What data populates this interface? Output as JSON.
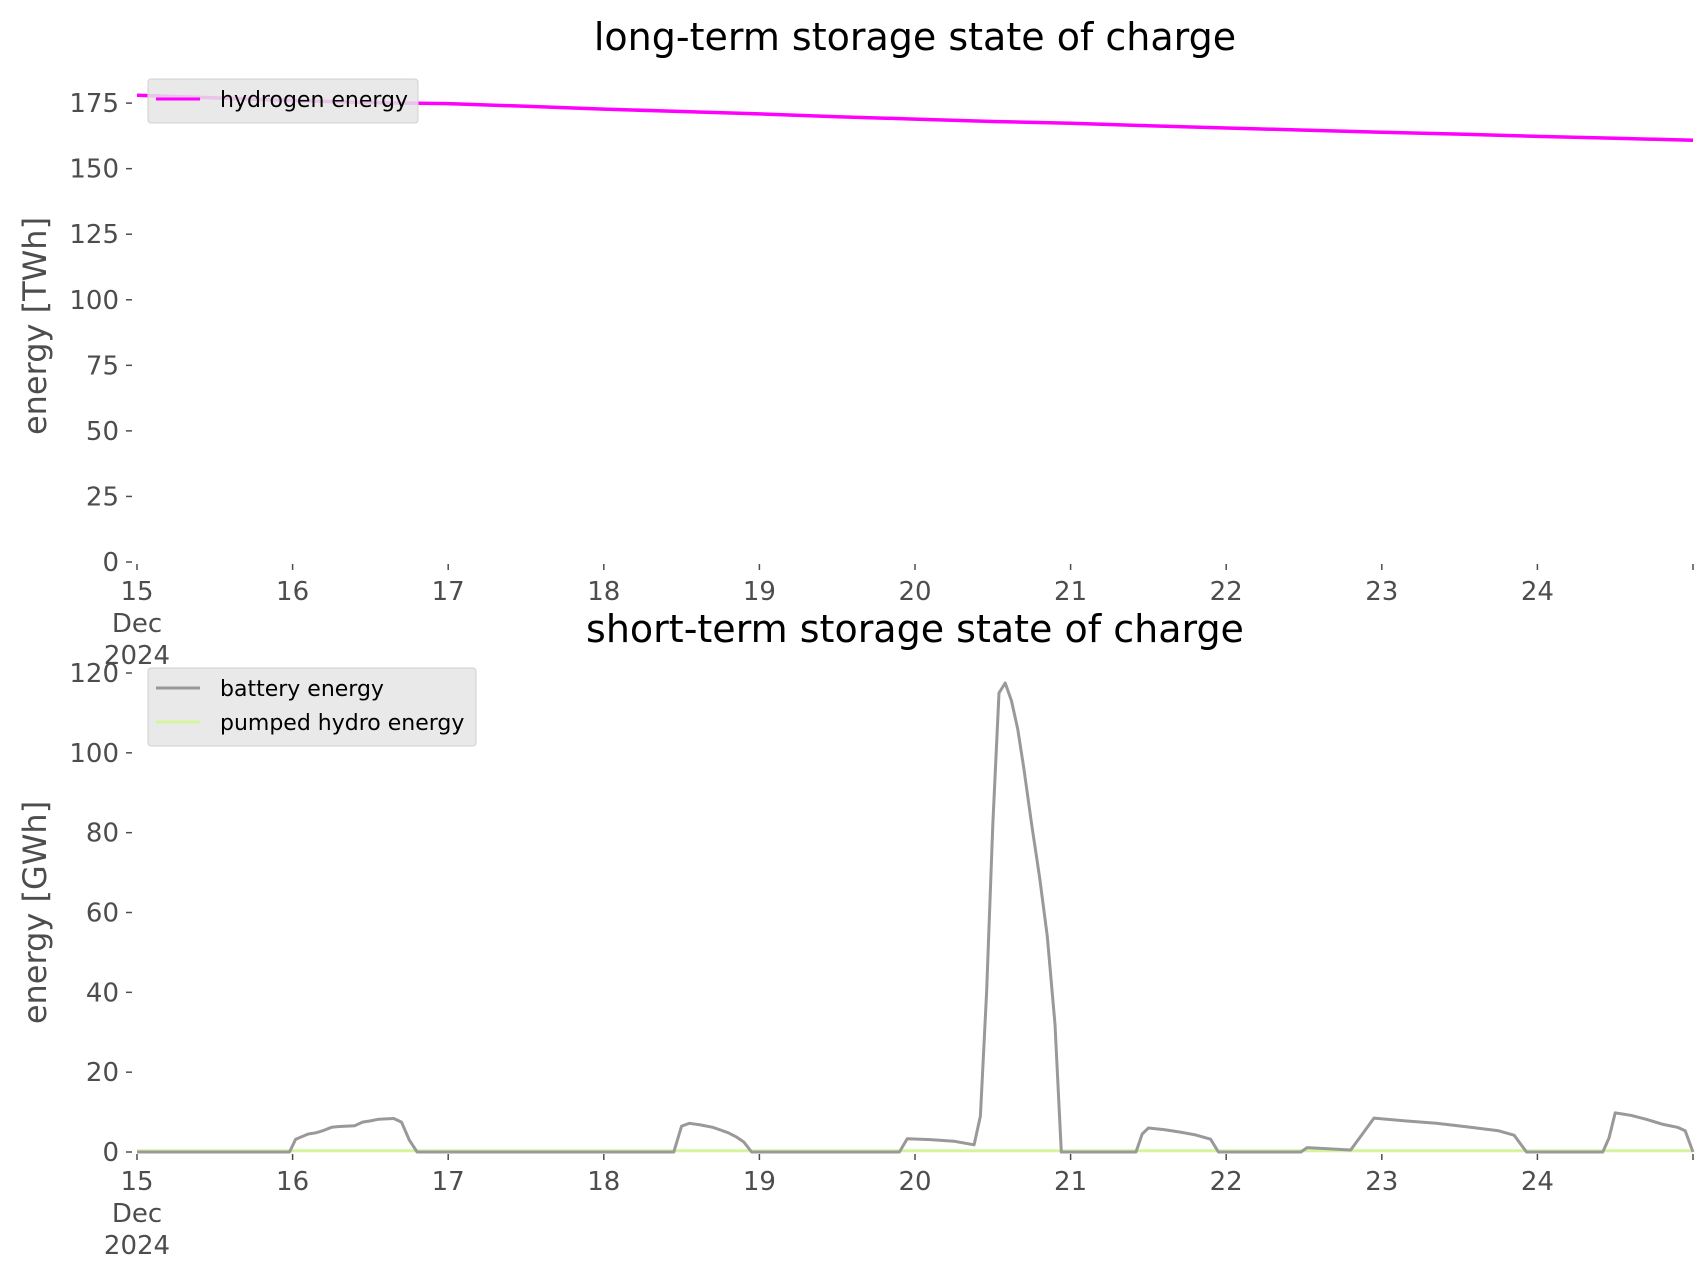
{
  "chart_data": [
    {
      "type": "line",
      "title": "long-term storage state of charge",
      "xlabel": "",
      "ylabel": "energy [TWh]",
      "xlim": [
        "2024-12-15 00:00",
        "2024-12-25 00:00"
      ],
      "ylim": [
        0,
        180
      ],
      "xticks": [
        {
          "value": 15,
          "label": [
            "15",
            "Dec",
            "2024"
          ]
        },
        {
          "value": 16,
          "label": [
            "16"
          ]
        },
        {
          "value": 17,
          "label": [
            "17"
          ]
        },
        {
          "value": 18,
          "label": [
            "18"
          ]
        },
        {
          "value": 19,
          "label": [
            "19"
          ]
        },
        {
          "value": 20,
          "label": [
            "20"
          ]
        },
        {
          "value": 21,
          "label": [
            "21"
          ]
        },
        {
          "value": 22,
          "label": [
            "22"
          ]
        },
        {
          "value": 23,
          "label": [
            "23"
          ]
        },
        {
          "value": 24,
          "label": [
            "24"
          ]
        },
        {
          "value": 25,
          "label": [
            ""
          ]
        }
      ],
      "yticks": [
        0,
        25,
        50,
        75,
        100,
        125,
        150,
        175
      ],
      "grid": false,
      "legend": "top-left",
      "series": [
        {
          "name": "hydrogen energy",
          "color": "#ff00ff",
          "x": [
            15,
            15.5,
            16,
            16.5,
            17,
            17.5,
            18,
            18.5,
            19,
            19.5,
            20,
            20.5,
            21,
            21.5,
            22,
            22.5,
            23,
            23.5,
            24,
            24.5,
            25
          ],
          "y": [
            178,
            177,
            176,
            175.2,
            174.8,
            173.8,
            172.7,
            171.8,
            170.9,
            169.8,
            168.9,
            168,
            167.3,
            166.4,
            165.5,
            164.7,
            163.9,
            163.2,
            162.3,
            161.6,
            160.8
          ]
        }
      ]
    },
    {
      "type": "line",
      "title": "short-term storage state of charge",
      "xlabel": "",
      "ylabel": "energy [GWh]",
      "xlim": [
        "2024-12-15 00:00",
        "2024-12-25 00:00"
      ],
      "ylim": [
        0,
        120
      ],
      "xticks": [
        {
          "value": 15,
          "label": [
            "15",
            "Dec",
            "2024"
          ]
        },
        {
          "value": 16,
          "label": [
            "16"
          ]
        },
        {
          "value": 17,
          "label": [
            "17"
          ]
        },
        {
          "value": 18,
          "label": [
            "18"
          ]
        },
        {
          "value": 19,
          "label": [
            "19"
          ]
        },
        {
          "value": 20,
          "label": [
            "20"
          ]
        },
        {
          "value": 21,
          "label": [
            "21"
          ]
        },
        {
          "value": 22,
          "label": [
            "22"
          ]
        },
        {
          "value": 23,
          "label": [
            "23"
          ]
        },
        {
          "value": 24,
          "label": [
            "24"
          ]
        },
        {
          "value": 25,
          "label": [
            ""
          ]
        }
      ],
      "yticks": [
        0,
        20,
        40,
        60,
        80,
        100,
        120
      ],
      "grid": false,
      "legend": "top-left",
      "series": [
        {
          "name": "battery energy",
          "color": "#999999",
          "x": [
            15,
            15.98,
            16.02,
            16.1,
            16.15,
            16.2,
            16.25,
            16.3,
            16.35,
            16.4,
            16.45,
            16.5,
            16.55,
            16.6,
            16.65,
            16.7,
            16.75,
            16.8,
            18.45,
            18.5,
            18.55,
            18.62,
            18.7,
            18.75,
            18.8,
            18.85,
            18.9,
            18.95,
            19.9,
            19.95,
            20.1,
            20.25,
            20.38,
            20.42,
            20.46,
            20.5,
            20.54,
            20.58,
            20.62,
            20.66,
            20.7,
            20.75,
            20.8,
            20.85,
            20.9,
            20.94,
            20.97,
            21.42,
            21.46,
            21.5,
            21.6,
            21.7,
            21.8,
            21.9,
            21.95,
            22.48,
            22.52,
            22.8,
            22.95,
            23.15,
            23.35,
            23.55,
            23.75,
            23.85,
            23.93,
            24.42,
            24.46,
            24.5,
            24.6,
            24.7,
            24.8,
            24.9,
            24.95,
            25
          ],
          "y": [
            0,
            0,
            3.2,
            4.5,
            4.8,
            5.4,
            6.2,
            6.4,
            6.5,
            6.6,
            7.5,
            7.8,
            8.2,
            8.3,
            8.4,
            7.5,
            3,
            0,
            0,
            6.5,
            7.2,
            6.8,
            6.2,
            5.5,
            4.8,
            3.8,
            2.5,
            0,
            0,
            3.3,
            3.1,
            2.7,
            1.8,
            9,
            40,
            82,
            115,
            117.5,
            113,
            106,
            96,
            82,
            69,
            54,
            32,
            0,
            0,
            0,
            4.5,
            6,
            5.6,
            5,
            4.3,
            3.2,
            0,
            0,
            1.1,
            0.5,
            8.5,
            7.8,
            7.2,
            6.3,
            5.3,
            4.2,
            0,
            0,
            3.5,
            9.8,
            9.2,
            8.2,
            7,
            6.2,
            5.3,
            0
          ]
        },
        {
          "name": "pumped hydro energy",
          "color": "#d4f59e",
          "x": [
            15,
            25
          ],
          "y": [
            0.3,
            0.3
          ]
        }
      ]
    }
  ]
}
